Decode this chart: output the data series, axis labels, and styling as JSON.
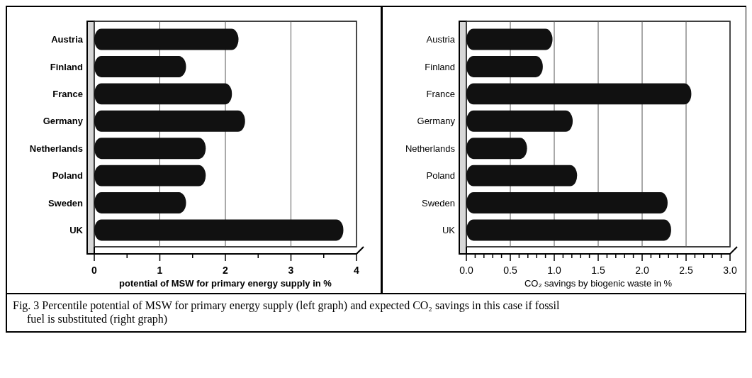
{
  "chart_data": [
    {
      "type": "bar",
      "orientation": "horizontal",
      "xlabel": "potential of MSW for primary energy supply in %",
      "categories": [
        "Austria",
        "Finland",
        "France",
        "Germany",
        "Netherlands",
        "Poland",
        "Sweden",
        "UK"
      ],
      "values": [
        2.2,
        1.4,
        2.1,
        2.3,
        1.7,
        1.7,
        1.4,
        3.8
      ],
      "color": "#111111",
      "xlim": [
        0,
        4
      ],
      "xticks": [
        0,
        {
          "value": 0.5,
          "label": null
        },
        1,
        {
          "value": 1.5,
          "label": null
        },
        2,
        {
          "value": 2.5,
          "label": null
        },
        3,
        {
          "value": 3.5,
          "label": null
        },
        4
      ],
      "grid": "x",
      "annotations": [
        "Fig. 3 Percentile potential of MSW for primary energy supply (left graph) and expected CO₂ savings in this case if fossil fuel is substituted (right graph)"
      ]
    },
    {
      "type": "bar",
      "orientation": "horizontal",
      "xlabel": "CO₂ savings by biogenic waste in %",
      "categories": [
        "Austria",
        "Finland",
        "France",
        "Germany",
        "Netherlands",
        "Poland",
        "Sweden",
        "UK"
      ],
      "values": [
        0.98,
        0.87,
        2.56,
        1.21,
        0.69,
        1.26,
        2.29,
        2.33
      ],
      "color": "#111111",
      "xlim": [
        0,
        3
      ],
      "xticks": [
        {
          "value": 0,
          "label": "0.0"
        },
        {
          "value": 0.1,
          "label": null
        },
        {
          "value": 0.2,
          "label": null
        },
        {
          "value": 0.3,
          "label": null
        },
        {
          "value": 0.4,
          "label": null
        },
        {
          "value": 0.5,
          "label": "0.5"
        },
        {
          "value": 0.6,
          "label": null
        },
        {
          "value": 0.7,
          "label": null
        },
        {
          "value": 0.8,
          "label": null
        },
        {
          "value": 0.9,
          "label": null
        },
        {
          "value": 1,
          "label": "1.0"
        },
        {
          "value": 1.1,
          "label": null
        },
        {
          "value": 1.2,
          "label": null
        },
        {
          "value": 1.3,
          "label": null
        },
        {
          "value": 1.4,
          "label": null
        },
        {
          "value": 1.5,
          "label": "1.5"
        },
        {
          "value": 1.6,
          "label": null
        },
        {
          "value": 1.7,
          "label": null
        },
        {
          "value": 1.8,
          "label": null
        },
        {
          "value": 1.9,
          "label": null
        },
        {
          "value": 2,
          "label": "2.0"
        },
        {
          "value": 2.1,
          "label": null
        },
        {
          "value": 2.2,
          "label": null
        },
        {
          "value": 2.3,
          "label": null
        },
        {
          "value": 2.4,
          "label": null
        },
        {
          "value": 2.5,
          "label": "2.5"
        },
        {
          "value": 2.6,
          "label": null
        },
        {
          "value": 2.7,
          "label": null
        },
        {
          "value": 2.8,
          "label": null
        },
        {
          "value": 2.9,
          "label": null
        },
        {
          "value": 3,
          "label": "3.0"
        }
      ],
      "grid": "x"
    }
  ]
}
